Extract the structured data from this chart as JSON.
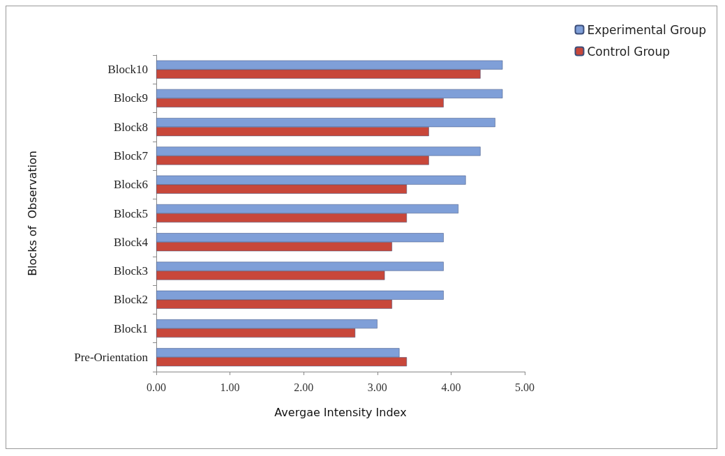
{
  "chart_data": {
    "type": "bar",
    "orientation": "horizontal",
    "xlabel": "Avergae Intensity Index",
    "ylabel": "Blocks of  Observation",
    "categories": [
      "Block10",
      "Block9",
      "Block8",
      "Block7",
      "Block6",
      "Block5",
      "Block4",
      "Block3",
      "Block2",
      "Block1",
      "Pre-Orientation"
    ],
    "series": [
      {
        "name": "Experimental Group",
        "color": "#7f9fd8",
        "values": [
          4.7,
          4.7,
          4.6,
          4.4,
          4.2,
          4.1,
          3.9,
          3.9,
          3.9,
          3.0,
          3.3
        ]
      },
      {
        "name": "Control Group",
        "color": "#c8473a",
        "values": [
          4.4,
          3.9,
          3.7,
          3.7,
          3.4,
          3.4,
          3.2,
          3.1,
          3.2,
          2.7,
          3.4
        ]
      }
    ],
    "xlim": [
      0,
      5
    ],
    "xticks": [
      {
        "value": 0,
        "label": "0.00"
      },
      {
        "value": 1,
        "label": "1.00"
      },
      {
        "value": 2,
        "label": "2.00"
      },
      {
        "value": 3,
        "label": "3.00"
      },
      {
        "value": 4,
        "label": "4.00"
      },
      {
        "value": 5,
        "label": "5.00"
      }
    ],
    "legend": "top right",
    "grid": false
  }
}
